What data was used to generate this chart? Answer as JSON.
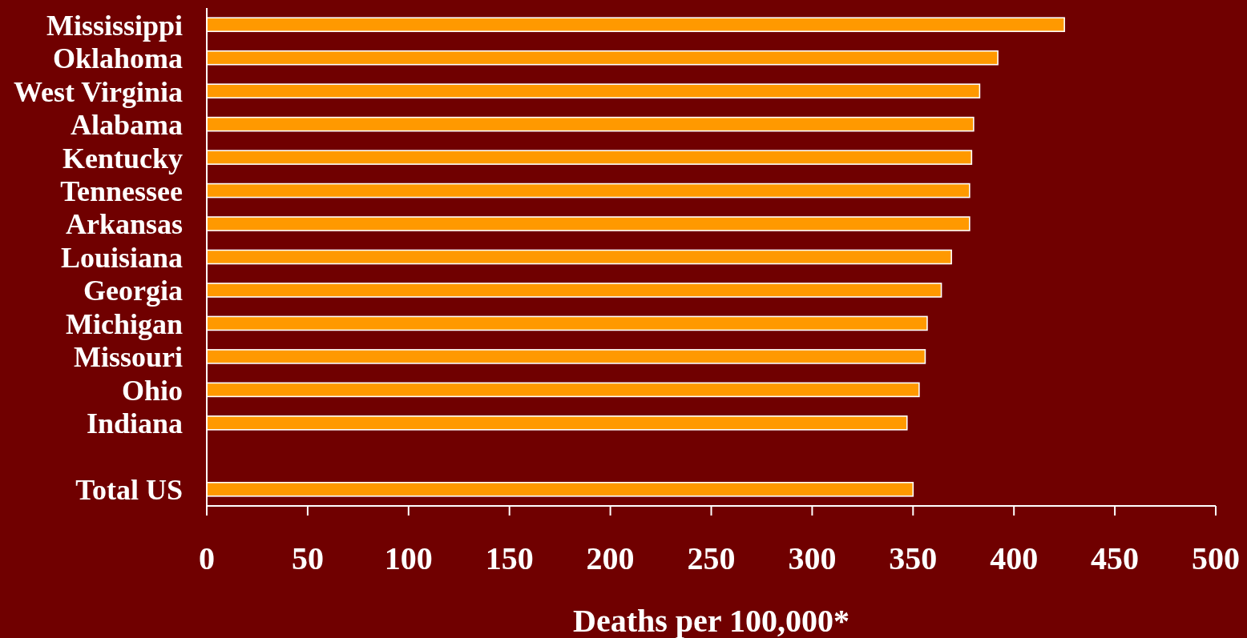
{
  "chart_data": {
    "type": "bar",
    "orientation": "horizontal",
    "xlabel": "Deaths per 100,000*",
    "categories": [
      "Mississippi",
      "Oklahoma",
      "West Virginia",
      "Alabama",
      "Kentucky",
      "Tennessee",
      "Arkansas",
      "Louisiana",
      "Georgia",
      "Michigan",
      "Missouri",
      "Ohio",
      "Indiana",
      null,
      "Total US"
    ],
    "values": [
      425,
      392,
      383,
      380,
      379,
      378,
      378,
      369,
      364,
      357,
      356,
      353,
      347,
      null,
      350
    ],
    "color": "#ff9900",
    "xlim": [
      0,
      500
    ],
    "xticks": [
      0,
      50,
      100,
      150,
      200,
      250,
      300,
      350,
      400,
      450,
      500
    ]
  }
}
